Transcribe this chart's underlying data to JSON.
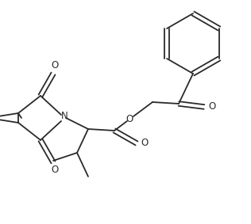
{
  "background_color": "#ffffff",
  "line_color": "#2a2a2a",
  "figsize": [
    3.16,
    2.83
  ],
  "dpi": 100,
  "xlim": [
    0,
    316
  ],
  "ylim": [
    0,
    283
  ]
}
